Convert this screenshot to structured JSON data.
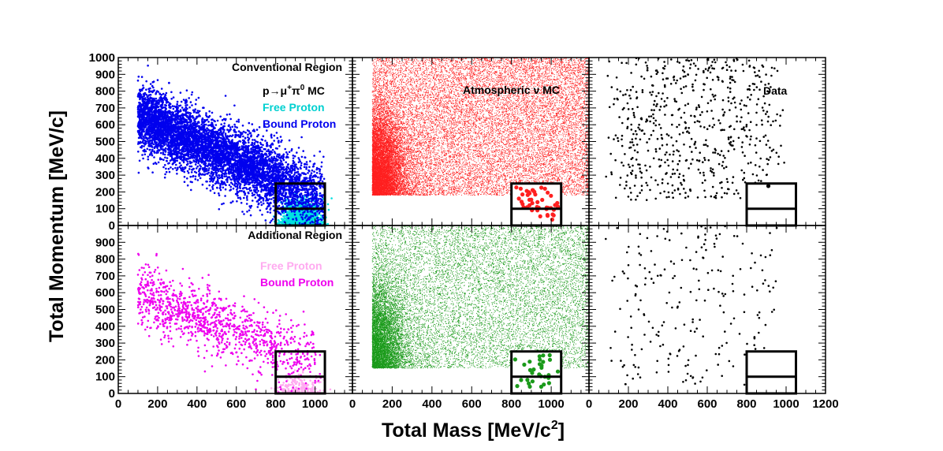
{
  "chart_data": {
    "type": "scatter",
    "xlabel": "Total Mass [MeV/c²]",
    "ylabel": "Total Momentum [MeV/c]",
    "layout": "2 rows x 3 columns, shared axes",
    "columns": [
      {
        "name": "signal MC",
        "xlim": [
          0,
          1190
        ],
        "x_ticks": [
          0,
          200,
          400,
          600,
          800,
          1000
        ]
      },
      {
        "name": "Atmospheric ν MC",
        "xlim": [
          0,
          1190
        ],
        "x_ticks": [
          0,
          200,
          400,
          600,
          800,
          1000
        ]
      },
      {
        "name": "Data",
        "xlim": [
          0,
          1200
        ],
        "x_ticks": [
          0,
          200,
          400,
          600,
          800,
          1000,
          1200
        ]
      }
    ],
    "rows": [
      {
        "name": "Conventional Region",
        "ylim": [
          0,
          1000
        ],
        "y_ticks": [
          0,
          100,
          200,
          300,
          400,
          500,
          600,
          700,
          800,
          900,
          1000
        ]
      },
      {
        "name": "Additional Region",
        "ylim": [
          0,
          1000
        ],
        "y_ticks": [
          0,
          100,
          200,
          300,
          400,
          500,
          600,
          700,
          800,
          900
        ]
      }
    ],
    "signal_box": {
      "x": [
        800,
        1050
      ],
      "y": [
        0,
        250
      ],
      "divider_y": 100
    },
    "annotations": {
      "conventional_region": "Conventional Region",
      "additional_region": "Additional Region",
      "signal_mc": "p→μ⁺π⁰ MC",
      "atmospheric_mc": "Atmospheric ν MC",
      "data": "Data",
      "free_proton": "Free Proton",
      "bound_proton": "Bound Proton"
    },
    "series": [
      {
        "name": "Free Proton",
        "panel": "conventional-signal",
        "color": "#00e0e0",
        "marker": "dot",
        "distribution": {
          "x_center": 930,
          "x_spread": 45,
          "y_max": 120,
          "count": 1500
        }
      },
      {
        "name": "Bound Proton",
        "panel": "conventional-signal",
        "color": "#0000ee",
        "marker": "dot",
        "distribution": {
          "trend": "anticorrelated band",
          "x_range": [
            100,
            1050
          ],
          "y_at_x_min": 650,
          "y_at_x_max": 150,
          "count": 6000
        }
      },
      {
        "name": "Atmospheric ν MC",
        "panel": "conventional-atmospheric",
        "color": "#ff2020",
        "marker": "fine",
        "distribution": {
          "x_range": [
            100,
            1190
          ],
          "y_range": [
            180,
            1000
          ],
          "count": 25000,
          "in_box_marker": "large-dot",
          "in_box_count": 45
        }
      },
      {
        "name": "Data",
        "panel": "conventional-data",
        "color": "#000000",
        "marker": "dot",
        "distribution": {
          "x_range": [
            80,
            1150
          ],
          "y_range": [
            150,
            1000
          ],
          "count": 650
        },
        "in_box_points": [
          {
            "x": 910,
            "y": 235
          }
        ]
      },
      {
        "name": "Free Proton",
        "panel": "additional-signal",
        "color": "#ffaaf0",
        "marker": "dot",
        "distribution": {
          "x_center": 920,
          "x_spread": 55,
          "y_max": 100,
          "count": 200
        }
      },
      {
        "name": "Bound Proton",
        "panel": "additional-signal",
        "color": "#ee00ee",
        "marker": "dot",
        "distribution": {
          "trend": "anticorrelated band",
          "x_range": [
            100,
            1030
          ],
          "y_at_x_min": 600,
          "y_at_x_max": 180,
          "count": 1100
        }
      },
      {
        "name": "Atmospheric ν MC",
        "panel": "additional-atmospheric",
        "color": "#1a9a1a",
        "marker": "fine",
        "distribution": {
          "x_range": [
            100,
            1190
          ],
          "y_range": [
            150,
            1000
          ],
          "count": 16000,
          "in_box_marker": "large-dot",
          "in_box_count": 30
        }
      },
      {
        "name": "Data",
        "panel": "additional-data",
        "color": "#000000",
        "marker": "dot",
        "distribution": {
          "x_range": [
            80,
            1150
          ],
          "y_range": [
            50,
            1000
          ],
          "count": 230
        }
      }
    ]
  }
}
